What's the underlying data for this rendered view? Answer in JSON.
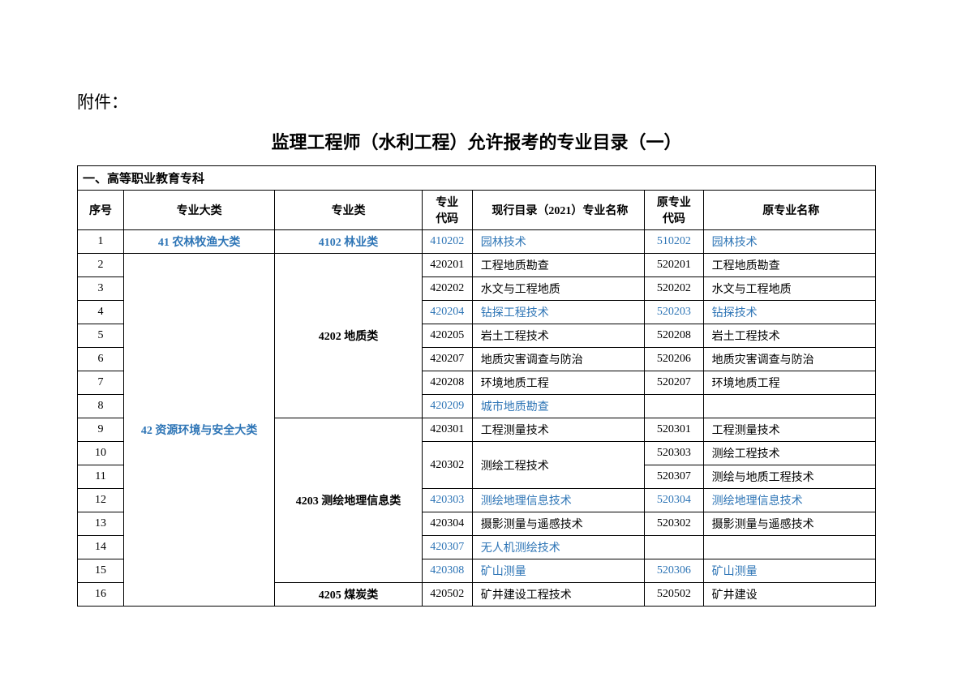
{
  "attach_label": "附件：",
  "title": "监理工程师（水利工程）允许报考的专业目录（一）",
  "section_heading": "一、高等职业教育专科",
  "headers": {
    "seq": "序号",
    "cat": "专业大类",
    "sub": "专业类",
    "code": "专业\n代码",
    "name": "现行目录（2021）专业名称",
    "ocode": "原专业\n代码",
    "oname": "原专业名称"
  },
  "cat1": {
    "label": "41 农林牧渔大类",
    "blue": true
  },
  "cat2": {
    "label": "42 资源环境与安全大类",
    "blue": true
  },
  "sub1": {
    "label": "4102 林业类",
    "blue": true
  },
  "sub2": {
    "label": "4202 地质类"
  },
  "sub3": {
    "label": "4203 测绘地理信息类"
  },
  "sub4": {
    "label": "4205 煤炭类"
  },
  "rows": [
    {
      "seq": "1",
      "code": "410202",
      "name": "园林技术",
      "ocode": "510202",
      "oname": "园林技术",
      "blue": true
    },
    {
      "seq": "2",
      "code": "420201",
      "name": "工程地质勘查",
      "ocode": "520201",
      "oname": "工程地质勘查",
      "blue": false
    },
    {
      "seq": "3",
      "code": "420202",
      "name": "水文与工程地质",
      "ocode": "520202",
      "oname": "水文与工程地质",
      "blue": false
    },
    {
      "seq": "4",
      "code": "420204",
      "name": "钻探工程技术",
      "ocode": "520203",
      "oname": "钻探技术",
      "blue": true
    },
    {
      "seq": "5",
      "code": "420205",
      "name": "岩土工程技术",
      "ocode": "520208",
      "oname": "岩土工程技术",
      "blue": false
    },
    {
      "seq": "6",
      "code": "420207",
      "name": "地质灾害调查与防治",
      "ocode": "520206",
      "oname": "地质灾害调查与防治",
      "blue": false
    },
    {
      "seq": "7",
      "code": "420208",
      "name": "环境地质工程",
      "ocode": "520207",
      "oname": "环境地质工程",
      "blue": false
    },
    {
      "seq": "8",
      "code": "420209",
      "name": "城市地质勘查",
      "ocode": "",
      "oname": "",
      "blue": true
    },
    {
      "seq": "9",
      "code": "420301",
      "name": "工程测量技术",
      "ocode": "520301",
      "oname": "工程测量技术",
      "blue": false
    },
    {
      "seq": "10",
      "code": "",
      "name": "",
      "ocode": "520303",
      "oname": "测绘工程技术",
      "blue": false
    },
    {
      "seq": "11",
      "code": "",
      "name": "",
      "ocode": "520307",
      "oname": "测绘与地质工程技术",
      "blue": false
    },
    {
      "seq": "12",
      "code": "420303",
      "name": "测绘地理信息技术",
      "ocode": "520304",
      "oname": "测绘地理信息技术",
      "blue": true
    },
    {
      "seq": "13",
      "code": "420304",
      "name": "摄影测量与遥感技术",
      "ocode": "520302",
      "oname": "摄影测量与遥感技术",
      "blue": false
    },
    {
      "seq": "14",
      "code": "420307",
      "name": "无人机测绘技术",
      "ocode": "",
      "oname": "",
      "blue": true
    },
    {
      "seq": "15",
      "code": "420308",
      "name": "矿山测量",
      "ocode": "520306",
      "oname": "矿山测量",
      "blue": true
    },
    {
      "seq": "16",
      "code": "420502",
      "name": "矿井建设工程技术",
      "ocode": "520502",
      "oname": "矿井建设",
      "blue": false
    }
  ],
  "merged_code_10_11": "420302",
  "merged_name_10_11": "测绘工程技术",
  "colors": {
    "text": "#000000",
    "link": "#2e75b6",
    "bg": "#ffffff",
    "border": "#000000"
  },
  "font_size_body": 14,
  "font_size_title": 22,
  "font_size_attach": 21
}
